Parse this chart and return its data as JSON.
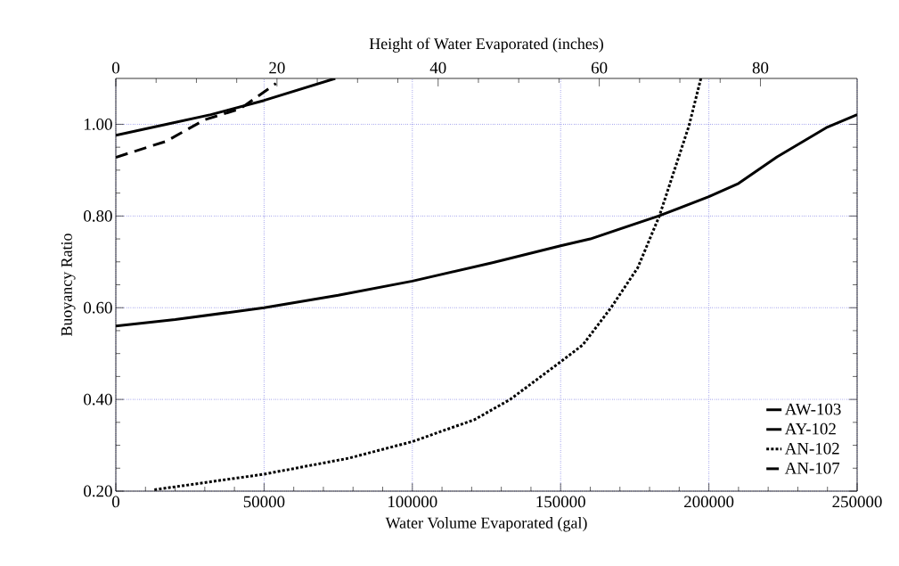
{
  "chart_data": {
    "type": "line",
    "xlabel": "Water Volume Evaporated (gal)",
    "ylabel": "Buoyancy Ratio",
    "x2label": "Height of Water Evaporated (inches)",
    "xlim": [
      0,
      250000
    ],
    "xticks": [
      0,
      50000,
      100000,
      150000,
      200000,
      250000
    ],
    "ylim": [
      0.2,
      1.1
    ],
    "yticks": [
      {
        "value": 0.2,
        "label": "0.20"
      },
      {
        "value": 0.4,
        "label": "0.40"
      },
      {
        "value": 0.6,
        "label": "0.60"
      },
      {
        "value": 0.8,
        "label": "0.80"
      },
      {
        "value": 1.0,
        "label": "1.00"
      }
    ],
    "x2lim": [
      0,
      92
    ],
    "x2ticks": [
      0,
      20,
      40,
      60,
      80
    ],
    "grid": true,
    "legend": "bottom right",
    "series": [
      {
        "name": "AW-103",
        "color": "#000000",
        "line_style": "solid",
        "x": [
          0,
          20000,
          50000,
          75000,
          100000,
          127000,
          150000,
          160000,
          183000,
          200000,
          210000,
          223000,
          240000,
          250000
        ],
        "values": [
          0.56,
          0.574,
          0.6,
          0.627,
          0.658,
          0.698,
          0.735,
          0.75,
          0.8,
          0.842,
          0.871,
          0.929,
          0.994,
          1.021
        ]
      },
      {
        "name": "AY-102",
        "color": "#000000",
        "line_style": "solid",
        "x": [
          0,
          17000,
          32000,
          50000,
          74000
        ],
        "values": [
          0.976,
          1.0,
          1.021,
          1.052,
          1.1
        ]
      },
      {
        "name": "AN-102",
        "color": "#000000",
        "line_style": "dotted",
        "x": [
          13000,
          50000,
          78700,
          100000,
          121000,
          133000,
          150000,
          157500,
          167000,
          176000,
          183300,
          193300,
          197300
        ],
        "values": [
          0.203,
          0.237,
          0.272,
          0.308,
          0.356,
          0.4,
          0.482,
          0.519,
          0.6,
          0.687,
          0.8,
          0.997,
          1.1
        ]
      },
      {
        "name": "AN-107",
        "color": "#000000",
        "line_style": "dashed",
        "x": [
          0,
          17000,
          30000,
          42000,
          54000
        ],
        "values": [
          0.928,
          0.963,
          1.01,
          1.034,
          1.089
        ]
      }
    ]
  }
}
